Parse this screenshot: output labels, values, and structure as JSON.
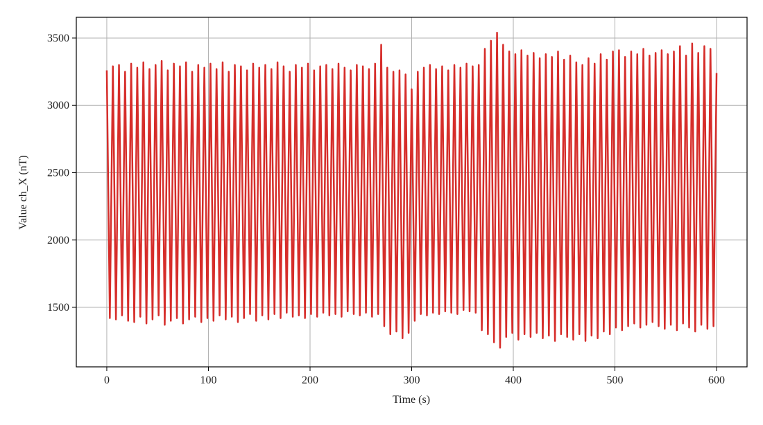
{
  "chart_data": {
    "type": "line",
    "x_label": "Time (s)",
    "y_label": "Value ch_X (nT)",
    "color": "#d62d2a",
    "grid": true,
    "xlim": [
      -30,
      630
    ],
    "ylim": [
      1058,
      3654
    ],
    "xticks": [
      0,
      100,
      200,
      300,
      400,
      500,
      600
    ],
    "yticks": [
      1500,
      2000,
      2500,
      3000,
      3500
    ],
    "x": [
      0,
      3,
      6,
      9,
      12,
      15,
      18,
      21,
      24,
      27,
      30,
      33,
      36,
      39,
      42,
      45,
      48,
      51,
      54,
      57,
      60,
      63,
      66,
      69,
      72,
      75,
      78,
      81,
      84,
      87,
      90,
      93,
      96,
      99,
      102,
      105,
      108,
      111,
      114,
      117,
      120,
      123,
      126,
      129,
      132,
      135,
      138,
      141,
      144,
      147,
      150,
      153,
      156,
      159,
      162,
      165,
      168,
      171,
      174,
      177,
      180,
      183,
      186,
      189,
      192,
      195,
      198,
      201,
      204,
      207,
      210,
      213,
      216,
      219,
      222,
      225,
      228,
      231,
      234,
      237,
      240,
      243,
      246,
      249,
      252,
      255,
      258,
      261,
      264,
      267,
      270,
      273,
      276,
      279,
      282,
      285,
      288,
      291,
      294,
      297,
      300,
      303,
      306,
      309,
      312,
      315,
      318,
      321,
      324,
      327,
      330,
      333,
      336,
      339,
      342,
      345,
      348,
      351,
      354,
      357,
      360,
      363,
      366,
      369,
      372,
      375,
      378,
      381,
      384,
      387,
      390,
      393,
      396,
      399,
      402,
      405,
      408,
      411,
      414,
      417,
      420,
      423,
      426,
      429,
      432,
      435,
      438,
      441,
      444,
      447,
      450,
      453,
      456,
      459,
      462,
      465,
      468,
      471,
      474,
      477,
      480,
      483,
      486,
      489,
      492,
      495,
      498,
      501,
      504,
      507,
      510,
      513,
      516,
      519,
      522,
      525,
      528,
      531,
      534,
      537,
      540,
      543,
      546,
      549,
      552,
      555,
      558,
      561,
      564,
      567,
      570,
      573,
      576,
      579,
      582,
      585,
      588,
      591,
      594,
      597,
      600
    ],
    "values": [
      3260,
      1420,
      3290,
      1410,
      3300,
      1440,
      3250,
      1400,
      3310,
      1390,
      3280,
      1430,
      3320,
      1380,
      3270,
      1410,
      3300,
      1440,
      3330,
      1370,
      3260,
      1400,
      3310,
      1420,
      3290,
      1380,
      3320,
      1410,
      3250,
      1430,
      3300,
      1390,
      3280,
      1420,
      3310,
      1400,
      3270,
      1440,
      3320,
      1410,
      3250,
      1430,
      3300,
      1390,
      3290,
      1420,
      3260,
      1450,
      3310,
      1400,
      3280,
      1440,
      3300,
      1410,
      3270,
      1450,
      3320,
      1420,
      3290,
      1460,
      3250,
      1430,
      3300,
      1440,
      3280,
      1420,
      3310,
      1450,
      3260,
      1430,
      3290,
      1460,
      3300,
      1440,
      3270,
      1450,
      3310,
      1430,
      3280,
      1470,
      3260,
      1450,
      3300,
      1440,
      3290,
      1460,
      3270,
      1430,
      3310,
      1450,
      3450,
      1360,
      3280,
      1300,
      3250,
      1320,
      3260,
      1270,
      3230,
      1310,
      3120,
      1400,
      3250,
      1450,
      3280,
      1440,
      3300,
      1460,
      3270,
      1450,
      3290,
      1470,
      3260,
      1460,
      3300,
      1450,
      3280,
      1480,
      3310,
      1470,
      3290,
      1460,
      3300,
      1330,
      3420,
      1300,
      3480,
      1240,
      3540,
      1200,
      3450,
      1280,
      3400,
      1310,
      3380,
      1260,
      3410,
      1300,
      3370,
      1280,
      3390,
      1310,
      3350,
      1270,
      3380,
      1290,
      3360,
      1250,
      3400,
      1300,
      3340,
      1280,
      3370,
      1260,
      3320,
      1300,
      3300,
      1250,
      3350,
      1290,
      3310,
      1270,
      3380,
      1320,
      3340,
      1300,
      3400,
      1350,
      3410,
      1330,
      3360,
      1360,
      3400,
      1380,
      3380,
      1350,
      3420,
      1370,
      3370,
      1390,
      3390,
      1360,
      3410,
      1340,
      3380,
      1370,
      3400,
      1330,
      3440,
      1380,
      3370,
      1350,
      3460,
      1320,
      3390,
      1370,
      3440,
      1340,
      3420,
      1360,
      3240
    ]
  }
}
